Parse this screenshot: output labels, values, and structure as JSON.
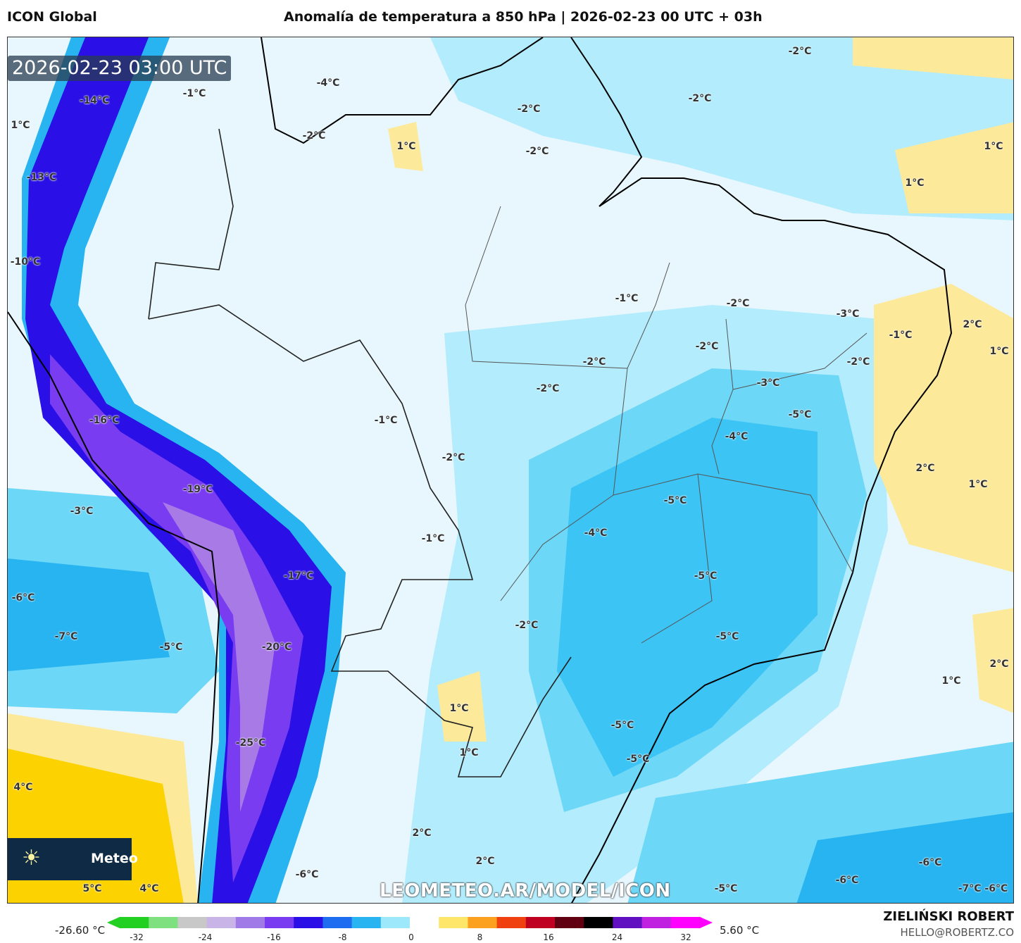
{
  "header": {
    "model": "ICON Global",
    "title": "Anomalía de temperatura a 850 hPa | 2026-02-23 00 UTC + 03h"
  },
  "map": {
    "timestamp": "2026-02-23 03:00 UTC",
    "watermark": "LEOMETEO.AR/MODEL/ICON",
    "logo_text": "Meteo",
    "labels": [
      "-1°C",
      "-4°C",
      "-2°C",
      "-14°C",
      "1°C",
      "1°C",
      "-2°C",
      "-2°C",
      "-2°C",
      "-2°C",
      "1°C",
      "1°C",
      "-13°C",
      "-10°C",
      "-1°C",
      "-2°C",
      "-3°C",
      "-1°C",
      "2°C",
      "1°C",
      "-2°C",
      "-2°C",
      "-2°C",
      "-3°C",
      "-2°C",
      "-5°C",
      "-16°C",
      "-1°C",
      "-4°C",
      "-2°C",
      "2°C",
      "1°C",
      "-19°C",
      "-5°C",
      "-3°C",
      "-4°C",
      "-1°C",
      "-5°C",
      "-17°C",
      "-6°C",
      "-2°C",
      "-7°C",
      "-5°C",
      "-5°C",
      "-20°C",
      "2°C",
      "1°C",
      "1°C",
      "-5°C",
      "-25°C",
      "1°C",
      "-5°C",
      "4°C",
      "2°C",
      "-6°C",
      "-6°C",
      "2°C",
      "-6°C",
      "5°C",
      "4°C",
      "-5°C",
      "-7°C -6°C"
    ]
  },
  "colorbar": {
    "min_label": "-26.60 °C",
    "max_label": "5.60 °C",
    "ticks": [
      "-32",
      "-24",
      "-16",
      "-8",
      "0",
      "8",
      "16",
      "24",
      "32"
    ],
    "colors": [
      "#22d022",
      "#7ee07e",
      "#c8c8c8",
      "#c8b4e6",
      "#a07ae6",
      "#7a3cf0",
      "#2a10e6",
      "#1e6cf0",
      "#28b4f0",
      "#9ee8fc",
      "#ffffff",
      "#fde66a",
      "#fca020",
      "#f04010",
      "#c00020",
      "#600010",
      "#000000",
      "#6010c0",
      "#c020e0",
      "#ff00ff"
    ]
  },
  "footer": {
    "author": "ZIELIŃSKI ROBERT",
    "email": "HELLO@ROBERTZ.CO"
  }
}
